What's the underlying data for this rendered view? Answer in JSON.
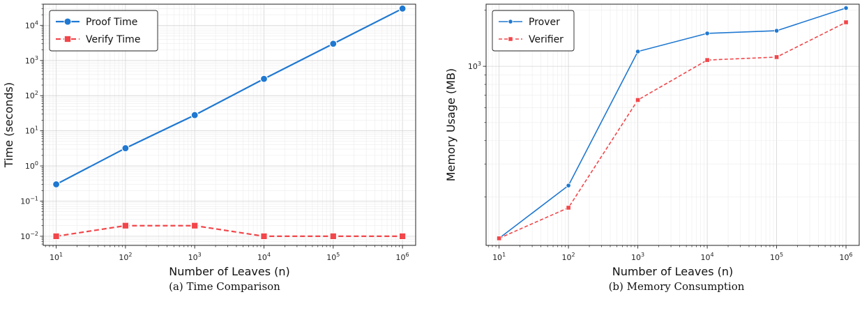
{
  "figure": {
    "captions": [
      "(a) Time Comparison",
      "(b) Memory Consumption"
    ]
  },
  "colors": {
    "blue": "#1f78d1",
    "red": "#f2464a"
  },
  "chart_data": [
    {
      "type": "line",
      "xscale": "log",
      "yscale": "log",
      "xlabel": "Number of Leaves (n)",
      "ylabel": "Time (seconds)",
      "x": [
        10,
        100,
        1000,
        10000,
        100000,
        1000000
      ],
      "xlim": [
        6.5,
        1550000.0
      ],
      "ylim": [
        0.0055,
        40000
      ],
      "xticks": [
        {
          "v": 10,
          "b": "10",
          "e": "1"
        },
        {
          "v": 100,
          "b": "10",
          "e": "2"
        },
        {
          "v": 1000,
          "b": "10",
          "e": "3"
        },
        {
          "v": 10000,
          "b": "10",
          "e": "4"
        },
        {
          "v": 100000,
          "b": "10",
          "e": "5"
        },
        {
          "v": 1000000,
          "b": "10",
          "e": "6"
        }
      ],
      "yticks": [
        {
          "v": 0.01,
          "b": "10",
          "e": "−2"
        },
        {
          "v": 0.1,
          "b": "10",
          "e": "−1"
        },
        {
          "v": 1,
          "b": "10",
          "e": "0"
        },
        {
          "v": 10,
          "b": "10",
          "e": "1"
        },
        {
          "v": 100,
          "b": "10",
          "e": "2"
        },
        {
          "v": 1000,
          "b": "10",
          "e": "3"
        },
        {
          "v": 10000,
          "b": "10",
          "e": "4"
        }
      ],
      "grid": true,
      "legend_position": "top-left",
      "series": [
        {
          "name": "Proof Time",
          "values": [
            0.3,
            3.2,
            28,
            300,
            3000,
            30000
          ],
          "color": "#1f78d1",
          "marker": "circle",
          "dash": "solid"
        },
        {
          "name": "Verify Time",
          "values": [
            0.01,
            0.02,
            0.02,
            0.01,
            0.01,
            0.01
          ],
          "color": "#f2464a",
          "marker": "square",
          "dash": "dashed"
        }
      ]
    },
    {
      "type": "line",
      "xscale": "log",
      "yscale": "log",
      "xlabel": "Number of Leaves (n)",
      "ylabel": "Memory Usage (MB)",
      "x": [
        10,
        100,
        1000,
        10000,
        100000,
        1000000
      ],
      "xlim": [
        6.5,
        1550000.0
      ],
      "ylim": [
        110,
        2150
      ],
      "xticks": [
        {
          "v": 10,
          "b": "10",
          "e": "1"
        },
        {
          "v": 100,
          "b": "10",
          "e": "2"
        },
        {
          "v": 1000,
          "b": "10",
          "e": "3"
        },
        {
          "v": 10000,
          "b": "10",
          "e": "4"
        },
        {
          "v": 100000,
          "b": "10",
          "e": "5"
        },
        {
          "v": 1000000,
          "b": "10",
          "e": "6"
        }
      ],
      "yticks": [
        {
          "v": 1000,
          "b": "10",
          "e": "3"
        }
      ],
      "grid": true,
      "legend_position": "top-left",
      "series": [
        {
          "name": "Prover",
          "values": [
            120,
            230,
            1200,
            1500,
            1550,
            2050
          ],
          "color": "#1f78d1",
          "marker": "circle",
          "dash": "solid"
        },
        {
          "name": "Verifier",
          "values": [
            120,
            175,
            660,
            1080,
            1120,
            1720
          ],
          "color": "#f2464a",
          "marker": "square",
          "dash": "dashed"
        }
      ]
    }
  ]
}
